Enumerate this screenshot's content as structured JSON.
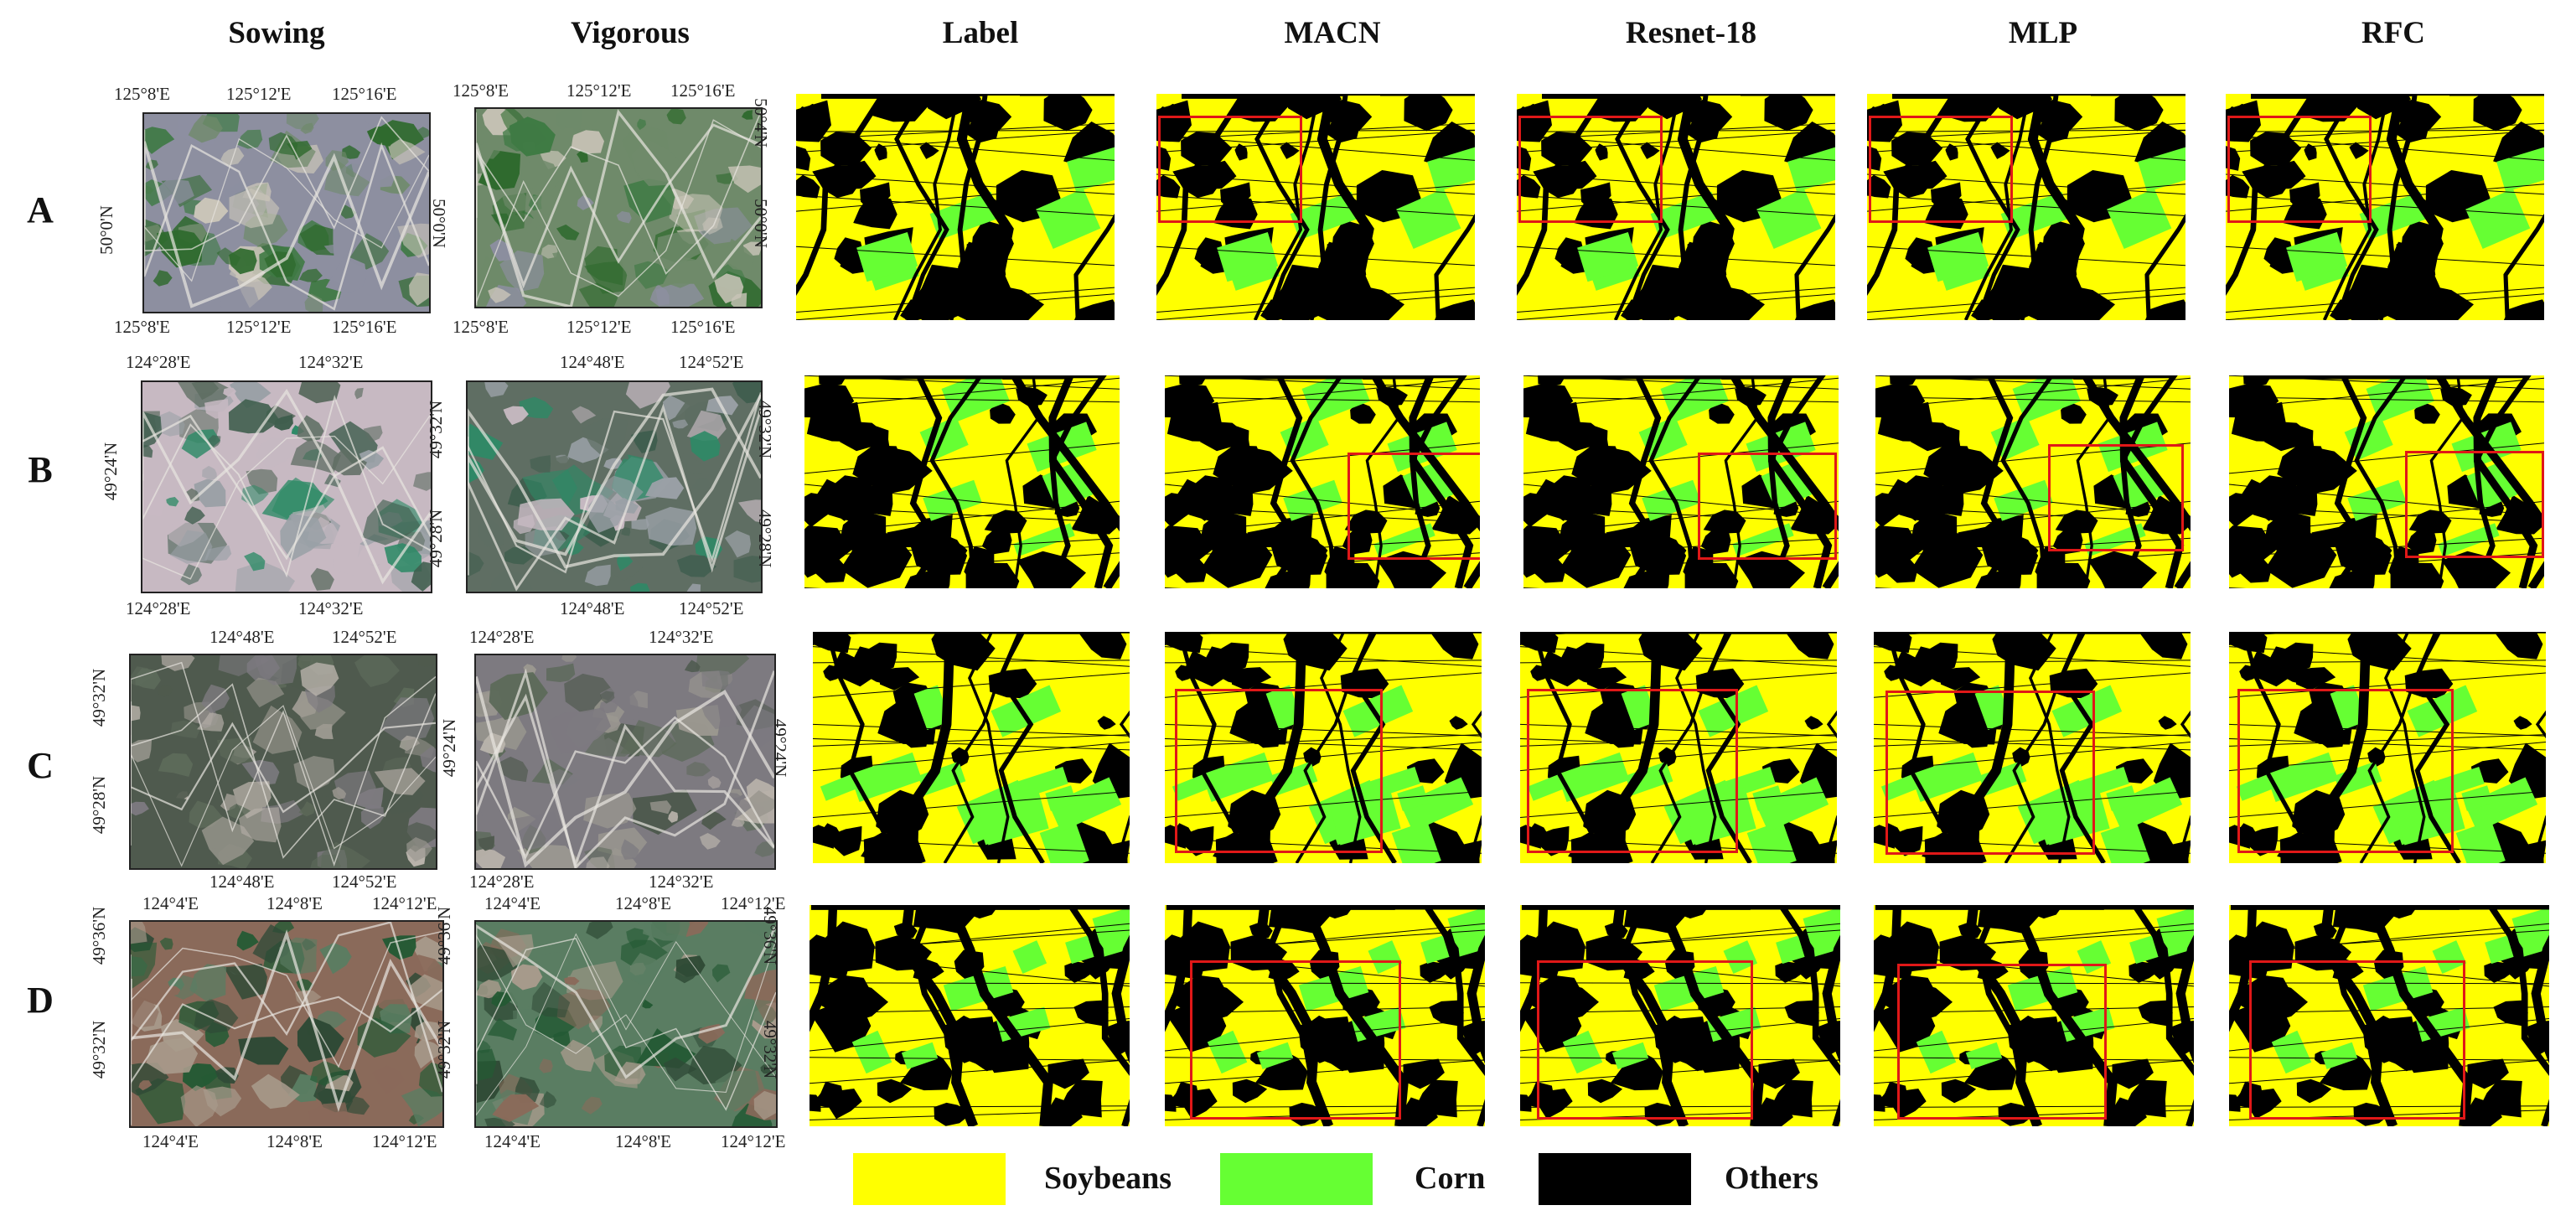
{
  "columns": [
    "Sowing",
    "Vigorous",
    "Label",
    "MACN",
    "Resnet-18",
    "MLP",
    "RFC"
  ],
  "rows": [
    "A",
    "B",
    "C",
    "D"
  ],
  "coords": {
    "A": {
      "sowing_top": [
        "125°8'E",
        "125°12'E",
        "125°16'E"
      ],
      "sowing_bottom": [
        "125°8'E",
        "125°12'E",
        "125°16'E"
      ],
      "sowing_left": "50°0'N",
      "vigorous_top": [
        "125°8'E",
        "125°12'E",
        "125°16'E"
      ],
      "vigorous_bottom": [
        "125°8'E",
        "125°12'E",
        "125°16'E"
      ],
      "vigorous_left": "50°0'N",
      "vigorous_right_top": "50°4'N",
      "vigorous_right": "50°0'N"
    },
    "B": {
      "sowing_top": [
        "124°28'E",
        "124°32'E"
      ],
      "sowing_bottom": [
        "124°28'E",
        "124°32'E"
      ],
      "sowing_left": "49°24'N",
      "vigorous_top": [
        "124°48'E",
        "124°52'E"
      ],
      "vigorous_bottom": [
        "124°48'E",
        "124°52'E"
      ],
      "vigorous_left_top": "49°32'N",
      "vigorous_left_bottom": "49°28'N",
      "vigorous_right_top": "49°32'N",
      "vigorous_right_bottom": "49°28'N"
    },
    "C": {
      "sowing_top": [
        "124°48'E",
        "124°52'E"
      ],
      "sowing_bottom": [
        "124°48'E",
        "124°52'E"
      ],
      "sowing_left_top": "49°32'N",
      "sowing_left_bottom": "49°28'N",
      "vigorous_top": [
        "124°28'E",
        "124°32'E"
      ],
      "vigorous_bottom": [
        "124°28'E",
        "124°32'E"
      ],
      "vigorous_left": "49°24'N",
      "vigorous_right": "49°24'N"
    },
    "D": {
      "sowing_top": [
        "124°4'E",
        "124°8'E",
        "124°12'E"
      ],
      "sowing_bottom": [
        "124°4'E",
        "124°8'E",
        "124°12'E"
      ],
      "sowing_left_top": "49°36'N",
      "sowing_left_bottom": "49°32'N",
      "vigorous_top": [
        "124°4'E",
        "124°8'E",
        "124°12'E"
      ],
      "vigorous_bottom": [
        "124°4'E",
        "124°8'E",
        "124°12'E"
      ],
      "vigorous_left_top": "49°36'N",
      "vigorous_left_bottom": "49°32'N",
      "vigorous_right_top": "49°36'N",
      "vigorous_right_bottom": "49°32'N"
    }
  },
  "legend": [
    {
      "label": "Soybeans",
      "color": "#ffff00"
    },
    {
      "label": "Corn",
      "color": "#66ff33"
    },
    {
      "label": "Others",
      "color": "#000000"
    }
  ],
  "colors": {
    "soybeans": "#ffff00",
    "corn": "#66ff33",
    "others": "#000000",
    "highlight_box": "#e01818"
  }
}
